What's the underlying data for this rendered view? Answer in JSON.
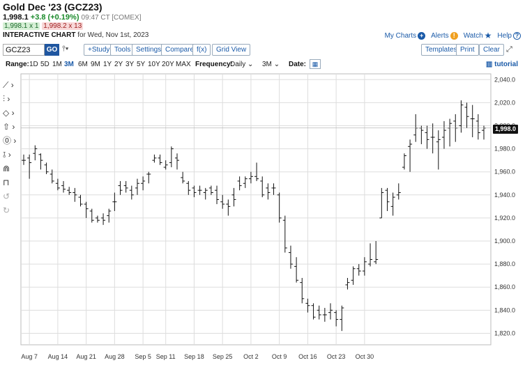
{
  "header": {
    "title": "Gold Dec '23 (GCZ23)",
    "last": "1,998.1",
    "change": "+3.8 (+0.19%)",
    "time": "09:47 CT [COMEX]",
    "bid": "1,998.1 x 1",
    "ask": "1,998.2 x 13",
    "subtitle_bold": "INTERACTIVE CHART",
    "subtitle_rest": "for Wed, Nov 1st, 2023"
  },
  "links": {
    "mycharts": "My Charts",
    "alerts": "Alerts",
    "watch": "Watch",
    "help": "Help"
  },
  "toolbar": {
    "symbol": "GCZ23",
    "go": "GO",
    "study": "+Study",
    "tools": "Tools",
    "settings": "Settings",
    "compare": "Compare",
    "fx": "f(x)",
    "gridview": "Grid View",
    "templates": "Templates",
    "print": "Print",
    "clear": "Clear"
  },
  "rangebar": {
    "range_label": "Range:",
    "ranges": [
      "1D",
      "5D",
      "1M",
      "3M",
      "6M",
      "9M",
      "1Y",
      "2Y",
      "3Y",
      "5Y",
      "10Y",
      "20Y",
      "MAX"
    ],
    "selected": "3M",
    "frequency_label": "Frequency:",
    "frequency": "Daily",
    "period": "3M",
    "date_label": "Date:",
    "tutorial": "tutorial"
  },
  "chart_data": {
    "type": "ohlc",
    "last_price_label": "1,998.0",
    "ylim": [
      1810,
      2045
    ],
    "y_ticks": [
      2040,
      2020,
      2000,
      1980,
      1960,
      1940,
      1920,
      1900,
      1880,
      1860,
      1840,
      1820
    ],
    "y_tick_labels": [
      "2,040.0",
      "2,020.0",
      "2,000.0",
      "1,980.0",
      "1,960.0",
      "1,940.0",
      "1,920.0",
      "1,900.0",
      "1,880.0",
      "1,860.0",
      "1,840.0",
      "1,820.0"
    ],
    "x_labels": [
      "Aug 7",
      "Aug 14",
      "Aug 21",
      "Aug 28",
      "Sep 5",
      "Sep 11",
      "Sep 18",
      "Sep 25",
      "Oct 2",
      "Oct 9",
      "Oct 16",
      "Oct 23",
      "Oct 30"
    ],
    "bars": [
      [
        1970,
        1975,
        1966,
        1970
      ],
      [
        1972,
        1975,
        1954,
        1968
      ],
      [
        1976,
        1983,
        1970,
        1980
      ],
      [
        1975,
        1976,
        1962,
        1970
      ],
      [
        1966,
        1968,
        1958,
        1960
      ],
      [
        1958,
        1962,
        1950,
        1952
      ],
      [
        1950,
        1954,
        1944,
        1946
      ],
      [
        1948,
        1952,
        1942,
        1945
      ],
      [
        1944,
        1947,
        1940,
        1942
      ],
      [
        1942,
        1946,
        1934,
        1940
      ],
      [
        1938,
        1940,
        1930,
        1932
      ],
      [
        1932,
        1934,
        1920,
        1928
      ],
      [
        1926,
        1928,
        1916,
        1918
      ],
      [
        1920,
        1922,
        1916,
        1918
      ],
      [
        1920,
        1924,
        1914,
        1918
      ],
      [
        1922,
        1928,
        1916,
        1926
      ],
      [
        1934,
        1942,
        1926,
        1934
      ],
      [
        1948,
        1952,
        1940,
        1944
      ],
      [
        1948,
        1952,
        1942,
        1946
      ],
      [
        1944,
        1948,
        1936,
        1940
      ],
      [
        1946,
        1954,
        1940,
        1950
      ],
      [
        1950,
        1956,
        1944,
        1952
      ],
      [
        1958,
        1960,
        1950,
        1958
      ],
      [
        1970,
        1975,
        1968,
        1972
      ],
      [
        1972,
        1975,
        1966,
        1968
      ],
      [
        1964,
        1970,
        1962,
        1966
      ],
      [
        1968,
        1982,
        1964,
        1980
      ],
      [
        1972,
        1976,
        1962,
        1970
      ],
      [
        1955,
        1960,
        1950,
        1952
      ],
      [
        1950,
        1952,
        1940,
        1944
      ],
      [
        1946,
        1948,
        1938,
        1942
      ],
      [
        1944,
        1948,
        1940,
        1944
      ],
      [
        1942,
        1946,
        1936,
        1944
      ],
      [
        1946,
        1948,
        1940,
        1942
      ],
      [
        1944,
        1948,
        1932,
        1936
      ],
      [
        1934,
        1940,
        1928,
        1932
      ],
      [
        1932,
        1936,
        1922,
        1930
      ],
      [
        1940,
        1946,
        1930,
        1936
      ],
      [
        1952,
        1956,
        1944,
        1948
      ],
      [
        1950,
        1956,
        1946,
        1954
      ],
      [
        1954,
        1960,
        1950,
        1956
      ],
      [
        1956,
        1968,
        1952,
        1954
      ],
      [
        1952,
        1956,
        1938,
        1940
      ],
      [
        1946,
        1950,
        1936,
        1942
      ],
      [
        1946,
        1950,
        1940,
        1946
      ],
      [
        1940,
        1942,
        1916,
        1920
      ],
      [
        1918,
        1922,
        1890,
        1894
      ],
      [
        1890,
        1896,
        1876,
        1880
      ],
      [
        1878,
        1886,
        1864,
        1866
      ],
      [
        1864,
        1868,
        1846,
        1850
      ],
      [
        1846,
        1850,
        1838,
        1844
      ],
      [
        1844,
        1846,
        1832,
        1834
      ],
      [
        1840,
        1844,
        1832,
        1836
      ],
      [
        1836,
        1842,
        1830,
        1836
      ],
      [
        1838,
        1846,
        1832,
        1840
      ],
      [
        1838,
        1840,
        1826,
        1832
      ],
      [
        1832,
        1844,
        1822,
        1842
      ],
      [
        1862,
        1868,
        1858,
        1864
      ],
      [
        1866,
        1878,
        1862,
        1876
      ],
      [
        1876,
        1880,
        1870,
        1874
      ],
      [
        1874,
        1886,
        1870,
        1882
      ],
      [
        1880,
        1898,
        1878,
        1884
      ],
      [
        1882,
        1900,
        1880,
        1884
      ],
      [
        1920,
        1946,
        1920,
        1942
      ],
      [
        1944,
        1946,
        1926,
        1934
      ],
      [
        1930,
        1942,
        1922,
        1938
      ],
      [
        1940,
        1950,
        1936,
        1942
      ],
      [
        1964,
        1976,
        1962,
        1974
      ],
      [
        1982,
        1988,
        1960,
        1984
      ],
      [
        1992,
        2010,
        1986,
        1998
      ],
      [
        1998,
        2000,
        1984,
        1996
      ],
      [
        1994,
        2000,
        1980,
        1988
      ],
      [
        1990,
        2002,
        1976,
        1990
      ],
      [
        1986,
        1996,
        1962,
        1988
      ],
      [
        1990,
        2004,
        1980,
        1996
      ],
      [
        1998,
        2006,
        1982,
        2002
      ],
      [
        2004,
        2010,
        1986,
        1998
      ],
      [
        2000,
        2022,
        1994,
        2018
      ],
      [
        2016,
        2020,
        1998,
        2008
      ],
      [
        2006,
        2018,
        1990,
        2006
      ],
      [
        2004,
        2010,
        1988,
        1994
      ],
      [
        1996,
        2000,
        1988,
        1998
      ]
    ]
  }
}
